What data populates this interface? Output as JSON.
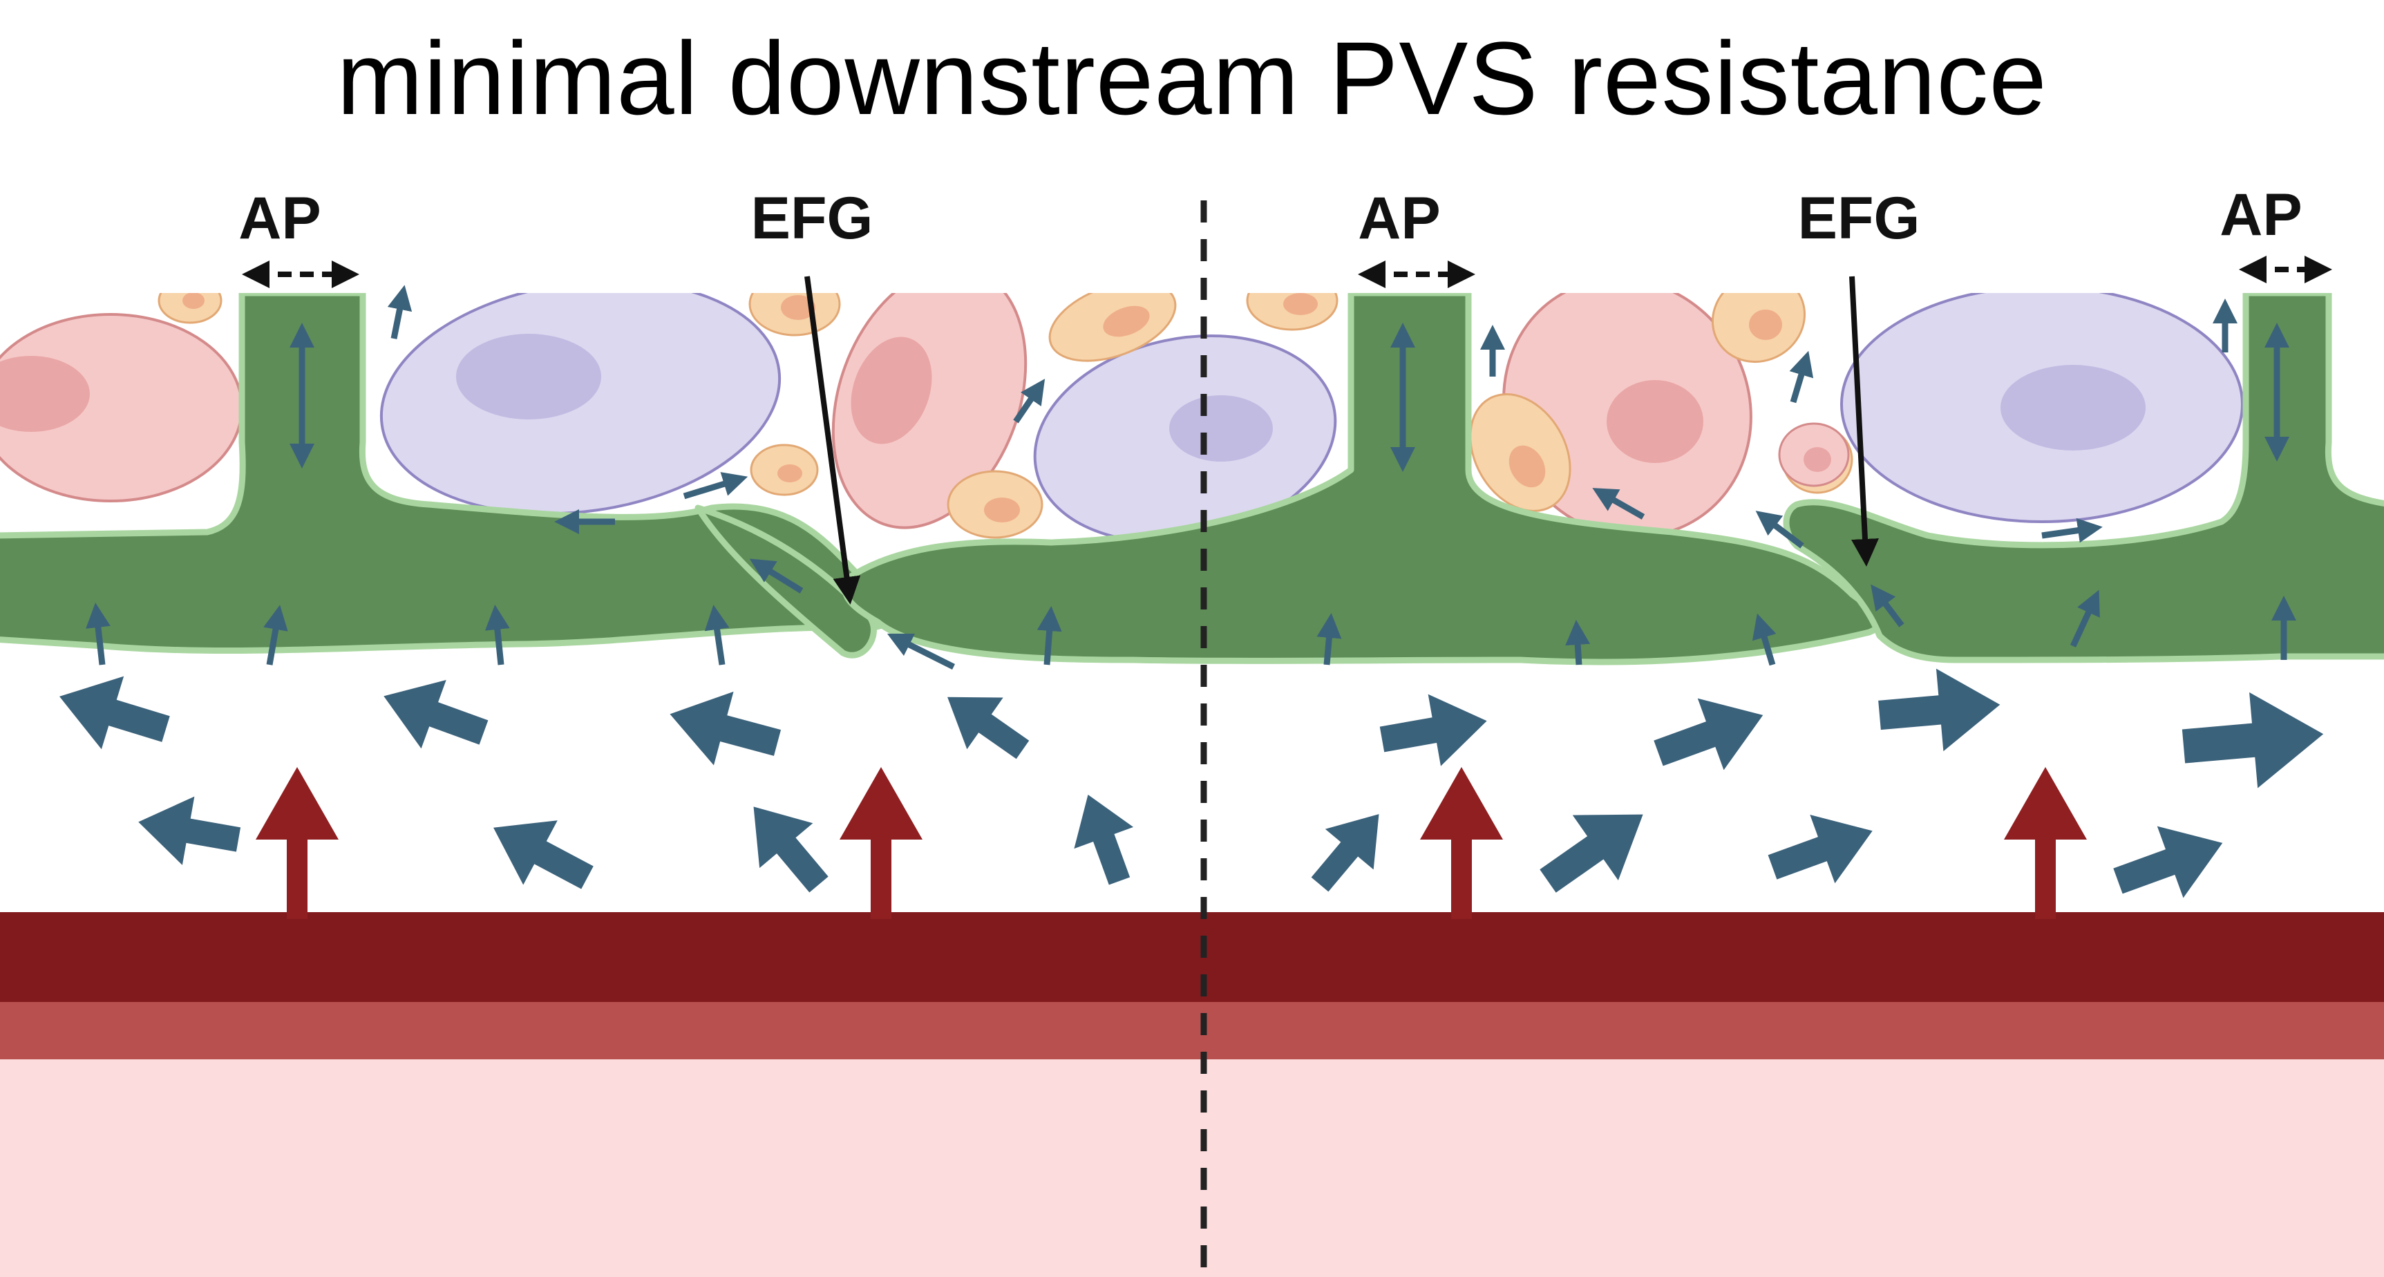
{
  "title": "minimal downstream PVS resistance",
  "labels": {
    "ap": "AP",
    "efg": "EFG"
  },
  "colors": {
    "astrocyte_endfoot": "#5f8d57",
    "endfoot_outline": "#a9d6a0",
    "flow_arrow": "#3b627b",
    "vessel_dark": "#811a1d",
    "vessel_mid": "#b95050",
    "vessel_lumen": "#fcdcdc",
    "vessel_arrow": "#8f1f21",
    "neuron_pink": "#f6c9c9",
    "neuron_purple": "#dcd8ef",
    "small_cell": "#f7d4aa"
  }
}
